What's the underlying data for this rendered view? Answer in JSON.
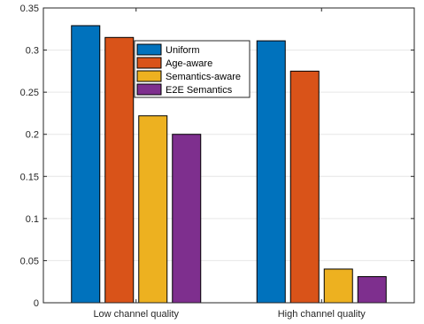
{
  "chart_data": {
    "type": "bar",
    "categories": [
      "Low channel quality",
      "High channel quality"
    ],
    "series": [
      {
        "name": "Uniform",
        "color": "#0072BD",
        "values": [
          0.329,
          0.311
        ]
      },
      {
        "name": "Age-aware",
        "color": "#D95319",
        "values": [
          0.315,
          0.275
        ]
      },
      {
        "name": "Semantics-aware",
        "color": "#EDB120",
        "values": [
          0.222,
          0.04
        ]
      },
      {
        "name": "E2E Semantics",
        "color": "#7E2F8E",
        "values": [
          0.2,
          0.031
        ]
      }
    ],
    "ylim": [
      0,
      0.35
    ],
    "yticks": [
      "0",
      "0.05",
      "0.1",
      "0.15",
      "0.2",
      "0.25",
      "0.3",
      "0.35"
    ],
    "grid": true,
    "legend_placement": "top-center",
    "title": "",
    "xlabel": "",
    "ylabel": ""
  }
}
